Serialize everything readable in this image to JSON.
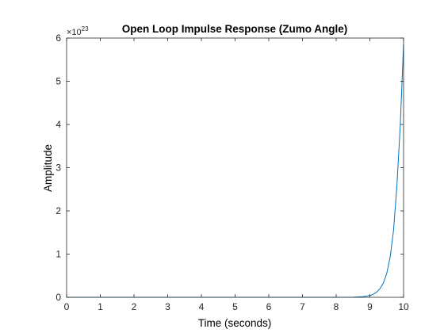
{
  "chart_data": {
    "type": "line",
    "title": "Open Loop Impulse Response (Zumo Angle)",
    "xlabel": "Time (seconds)",
    "ylabel": "Amplitude",
    "xlim": [
      0,
      10
    ],
    "ylim": [
      0,
      6
    ],
    "y_exponent_base": "×10",
    "y_exponent": "23",
    "x_ticks": [
      "0",
      "1",
      "2",
      "3",
      "4",
      "5",
      "6",
      "7",
      "8",
      "9",
      "10"
    ],
    "y_ticks": [
      "0",
      "1",
      "2",
      "3",
      "4",
      "5",
      "6"
    ],
    "grid": false,
    "line_color": "#0072BD",
    "series": [
      {
        "x": [
          0,
          1,
          2,
          3,
          4,
          5,
          6,
          7,
          8,
          8.5,
          8.8,
          9.0,
          9.1,
          9.2,
          9.3,
          9.4,
          9.5,
          9.6,
          9.7,
          9.8,
          9.9,
          10.0
        ],
        "y": [
          0,
          0,
          0,
          0,
          0,
          0,
          0,
          0,
          0.0002,
          0.003,
          0.015,
          0.042,
          0.07,
          0.12,
          0.2,
          0.33,
          0.55,
          0.92,
          1.53,
          2.55,
          3.95,
          5.85
        ]
      }
    ]
  }
}
